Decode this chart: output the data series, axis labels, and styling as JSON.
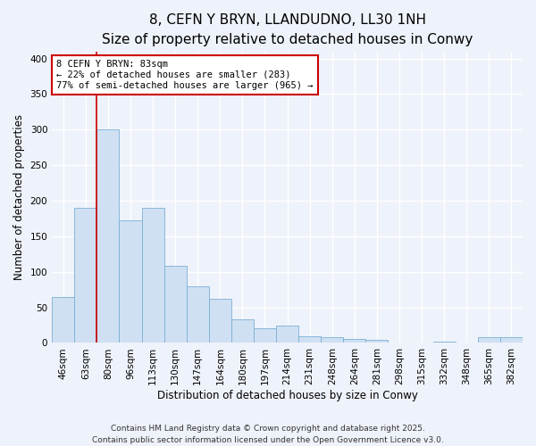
{
  "title": "8, CEFN Y BRYN, LLANDUDNO, LL30 1NH",
  "subtitle": "Size of property relative to detached houses in Conwy",
  "xlabel": "Distribution of detached houses by size in Conwy",
  "ylabel": "Number of detached properties",
  "bar_labels": [
    "46sqm",
    "63sqm",
    "80sqm",
    "96sqm",
    "113sqm",
    "130sqm",
    "147sqm",
    "164sqm",
    "180sqm",
    "197sqm",
    "214sqm",
    "231sqm",
    "248sqm",
    "264sqm",
    "281sqm",
    "298sqm",
    "315sqm",
    "332sqm",
    "348sqm",
    "365sqm",
    "382sqm"
  ],
  "bar_values": [
    65,
    190,
    300,
    172,
    190,
    108,
    80,
    62,
    33,
    21,
    25,
    9,
    8,
    5,
    4,
    1,
    1,
    2,
    1,
    8,
    8
  ],
  "bar_color": "#cfe0f3",
  "bar_edge_color": "#7bafd4",
  "vline_position": 1.5,
  "vline_color": "#cc0000",
  "annotation_title": "8 CEFN Y BRYN: 83sqm",
  "annotation_line1": "← 22% of detached houses are smaller (283)",
  "annotation_line2": "77% of semi-detached houses are larger (965) →",
  "annotation_box_color": "#ffffff",
  "annotation_box_edge": "#cc0000",
  "ylim": [
    0,
    410
  ],
  "yticks": [
    0,
    50,
    100,
    150,
    200,
    250,
    300,
    350,
    400
  ],
  "footer_line1": "Contains HM Land Registry data © Crown copyright and database right 2025.",
  "footer_line2": "Contains public sector information licensed under the Open Government Licence v3.0.",
  "background_color": "#eef2fa",
  "grid_color": "#ffffff",
  "title_fontsize": 11,
  "subtitle_fontsize": 9,
  "axis_label_fontsize": 8.5,
  "tick_fontsize": 7.5,
  "annotation_fontsize": 7.5,
  "footer_fontsize": 6.5
}
